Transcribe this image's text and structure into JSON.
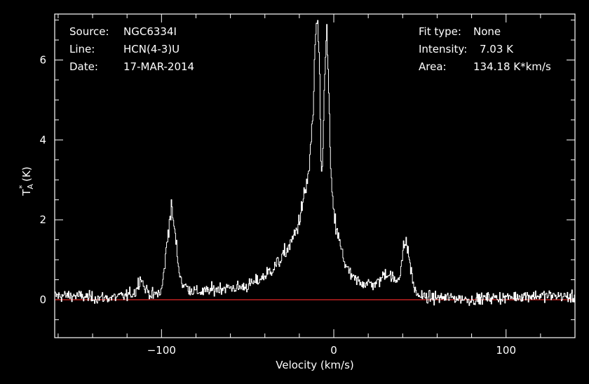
{
  "annotations": {
    "source_label": "Source:",
    "source_value": "NGC6334I",
    "line_label": "Line:",
    "line_value": "HCN(4-3)U",
    "date_label": "Date:",
    "date_value": "17-MAR-2014",
    "fit_label": "Fit type:",
    "fit_value": "None",
    "intensity_label": "Intensity:",
    "intensity_value": "7.03 K",
    "area_label": "Area:",
    "area_value": "134.18 K*km/s"
  },
  "chart_data": {
    "type": "line",
    "xlabel": "Velocity (km/s)",
    "ylabel_main": "T",
    "ylabel_sup": "*",
    "ylabel_sub": "A",
    "ylabel_unit": " (K)",
    "xlim": [
      -162,
      140
    ],
    "ylim": [
      -0.95,
      7.15
    ],
    "x_ticks": [
      -100,
      0,
      100
    ],
    "x_tick_labels": [
      "−100",
      "0",
      "100"
    ],
    "y_ticks": [
      0,
      2,
      4,
      6
    ],
    "y_tick_labels": [
      "0",
      "2",
      "4",
      "6"
    ],
    "baseline": 0,
    "colors": {
      "background": "#000000",
      "axes": "#ffffff",
      "spectrum": "#ffffff",
      "baseline": "#cc2222"
    },
    "grid": false,
    "noise_rms": 0.13,
    "channels": 800,
    "series": [
      {
        "name": "",
        "x": [
          -162,
          -150,
          -140,
          -130,
          -120,
          -115,
          -112,
          -110,
          -105,
          -100,
          -98,
          -96,
          -94,
          -92,
          -90,
          -88,
          -85,
          -80,
          -75,
          -70,
          -65,
          -60,
          -55,
          -50,
          -45,
          -40,
          -35,
          -30,
          -25,
          -22,
          -20,
          -18,
          -16,
          -14,
          -12,
          -11,
          -10,
          -9,
          -8,
          -7.5,
          -7,
          -6,
          -5,
          -4,
          -3,
          -2,
          -1,
          0,
          2,
          4,
          6,
          8,
          10,
          12,
          15,
          20,
          25,
          28,
          30,
          33,
          36,
          38,
          40,
          41,
          42,
          44,
          46,
          48,
          50,
          55,
          60,
          70,
          80,
          90,
          100,
          110,
          120,
          130,
          140
        ],
        "y": [
          0.1,
          0.1,
          0.05,
          0.05,
          0.1,
          0.2,
          0.6,
          0.3,
          0.1,
          0.2,
          0.9,
          1.8,
          2.3,
          1.6,
          0.8,
          0.4,
          0.3,
          0.2,
          0.2,
          0.25,
          0.3,
          0.3,
          0.3,
          0.35,
          0.45,
          0.6,
          0.8,
          1.05,
          1.4,
          1.7,
          2.0,
          2.4,
          2.8,
          3.4,
          4.6,
          6.2,
          6.9,
          6.75,
          5.0,
          3.5,
          3.0,
          4.2,
          6.2,
          6.6,
          5.4,
          3.6,
          2.6,
          2.1,
          1.7,
          1.3,
          1.0,
          0.75,
          0.6,
          0.5,
          0.45,
          0.4,
          0.4,
          0.55,
          0.7,
          0.6,
          0.45,
          0.6,
          1.1,
          1.4,
          1.45,
          1.0,
          0.4,
          0.15,
          0.1,
          0.05,
          0.05,
          0.05,
          0.0,
          0.05,
          0.05,
          0.1,
          0.1,
          0.1,
          0.05
        ]
      }
    ]
  }
}
